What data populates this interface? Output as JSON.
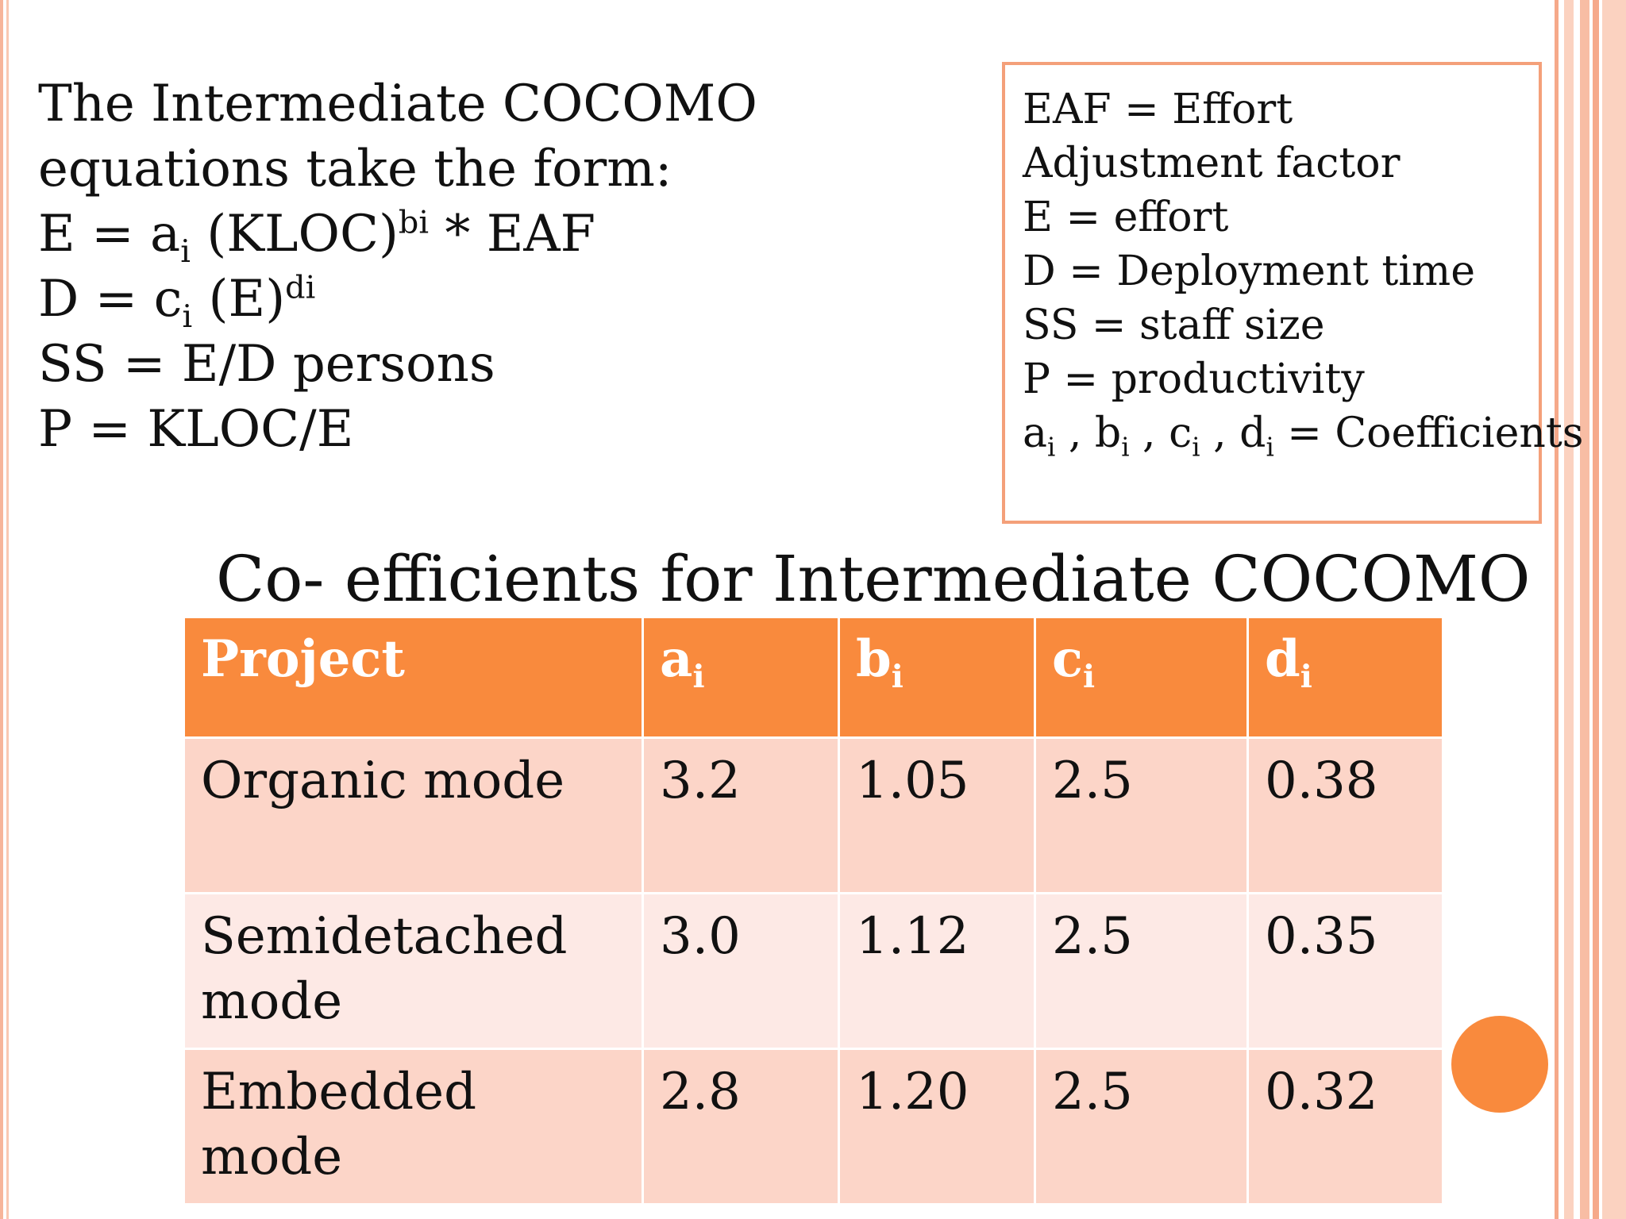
{
  "equations": {
    "intro_line1": "The Intermediate COCOMO",
    "intro_line2": "equations take the form:",
    "e_eq": {
      "lhs": "E = a",
      "sub": "i",
      "mid": " (KLOC)",
      "sup": "bi",
      "rhs": " * EAF"
    },
    "d_eq": {
      "lhs": "D = c",
      "sub": "i",
      "mid": " (E)",
      "sup": "di"
    },
    "ss_eq": "SS = E/D persons",
    "p_eq": "P = KLOC/E"
  },
  "legend": {
    "eaf_line1": "EAF = Effort",
    "eaf_line2": "Adjustment factor",
    "e_def": "E = effort",
    "d_def": "D = Deployment time",
    "ss_def": "SS = staff size",
    "p_def": "P = productivity",
    "coef": {
      "a": "a",
      "b": "b",
      "c": "c",
      "d": "d",
      "sub": "i",
      "sep": " , ",
      "rest": " = Coefficients"
    }
  },
  "table": {
    "title": "Co- efficients for Intermediate COCOMO",
    "headers": {
      "project": "Project",
      "a": "a",
      "b": "b",
      "c": "c",
      "d": "d",
      "sub": "i"
    },
    "rows": [
      {
        "project": "Organic mode",
        "a": "3.2",
        "b": "1.05",
        "c": "2.5",
        "d": "0.38"
      },
      {
        "project": "Semidetached mode",
        "a": "3.0",
        "b": "1.12",
        "c": "2.5",
        "d": "0.35"
      },
      {
        "project": "Embedded mode",
        "a": "2.8",
        "b": "1.20",
        "c": "2.5",
        "d": "0.32"
      }
    ]
  },
  "colors": {
    "accent": "#f98a3d",
    "row_dark": "#fcd5c8",
    "row_light": "#fde9e5",
    "box_border": "#f4a07a"
  }
}
